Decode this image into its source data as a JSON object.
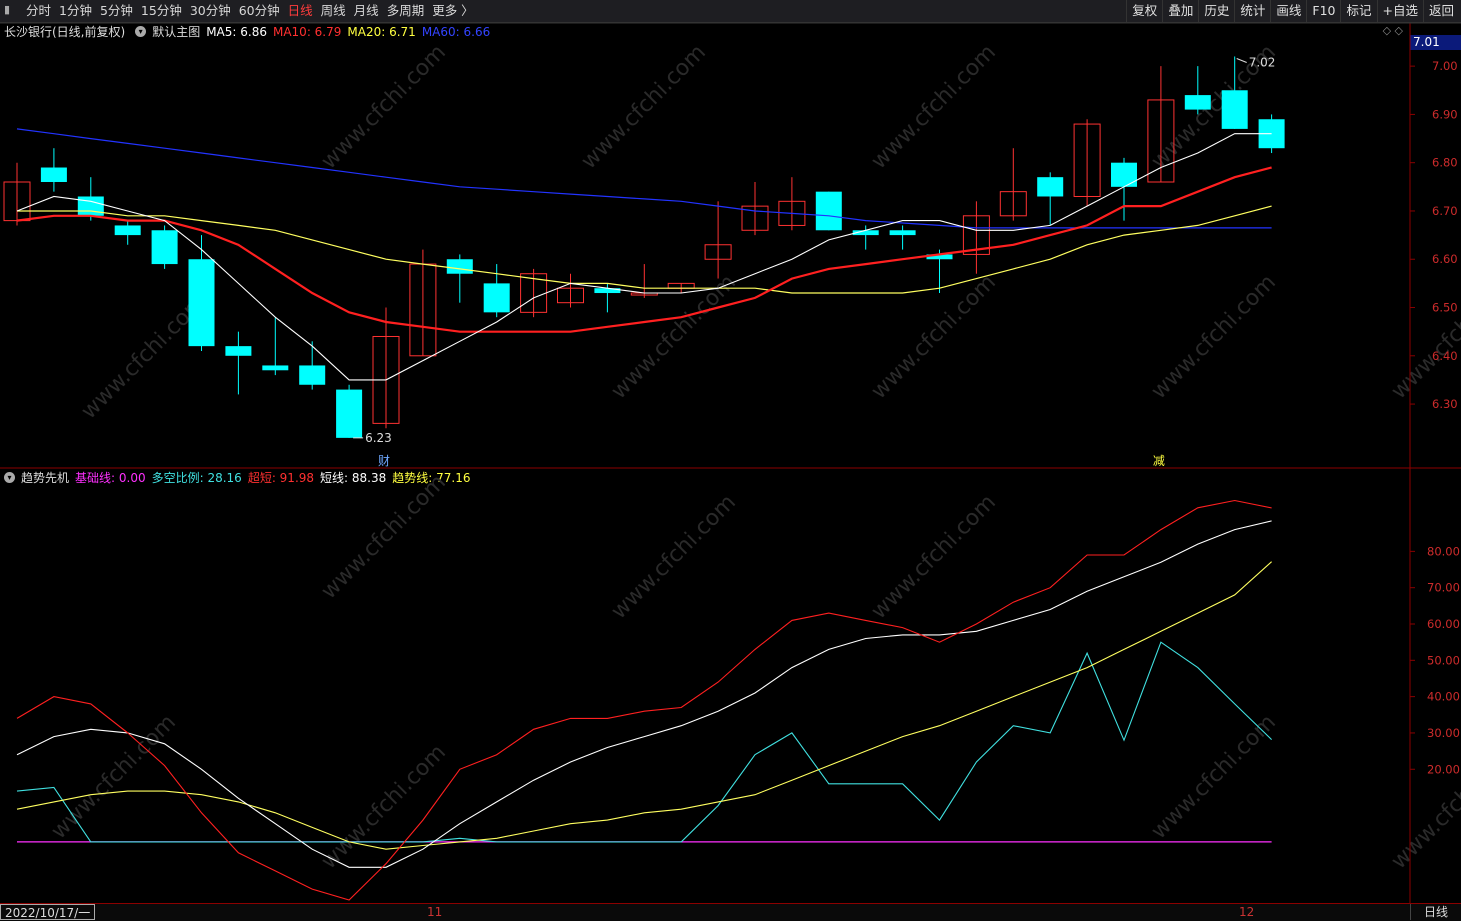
{
  "toolbar": {
    "periods": [
      "分时",
      "1分钟",
      "5分钟",
      "15分钟",
      "30分钟",
      "60分钟",
      "日线",
      "周线",
      "月线",
      "多周期",
      "更多 〉"
    ],
    "active_period": "日线",
    "tools": [
      "复权",
      "叠加",
      "历史",
      "统计",
      "画线",
      "F10",
      "标记",
      "+自选",
      "返回"
    ]
  },
  "main_panel": {
    "stock": "长沙银行(日线,前复权)",
    "chart_name": "默认主图",
    "ma5": "MA5: 6.86",
    "ma10": "MA10: 6.79",
    "ma20": "MA20: 6.71",
    "ma60": "MA60: 6.66",
    "current_price": "7.01",
    "high_label": "7.02",
    "low_label": "6.23",
    "marker_cai": "财",
    "marker_jian": "减"
  },
  "sub_panel": {
    "name": "趋势先机",
    "base": "基础线: 0.00",
    "ratio": "多空比例: 28.16",
    "chao": "超短: 91.98",
    "short": "短线: 88.38",
    "trend": "趋势线: 77.16"
  },
  "bottom": {
    "date": "2022/10/17/一",
    "month_11": "11",
    "month_12": "12",
    "period": "日线"
  },
  "watermark": "www.cfchi.com",
  "colors": {
    "up": "#ff3232",
    "down": "#00ffff",
    "ma5": "#ffffff",
    "ma10": "#ff2020",
    "ma20": "#ffff60",
    "ma60": "#2233ff"
  },
  "chart_data": {
    "type": "candlestick",
    "price_axis": {
      "ticks": [
        7.0,
        6.9,
        6.8,
        6.7,
        6.6,
        6.5,
        6.4,
        6.3
      ],
      "range": [
        6.18,
        7.05
      ]
    },
    "candles": [
      {
        "o": 6.68,
        "h": 6.8,
        "l": 6.67,
        "c": 6.76
      },
      {
        "o": 6.79,
        "h": 6.83,
        "l": 6.74,
        "c": 6.76
      },
      {
        "o": 6.73,
        "h": 6.77,
        "l": 6.68,
        "c": 6.69
      },
      {
        "o": 6.67,
        "h": 6.68,
        "l": 6.63,
        "c": 6.65
      },
      {
        "o": 6.66,
        "h": 6.67,
        "l": 6.58,
        "c": 6.59
      },
      {
        "o": 6.6,
        "h": 6.65,
        "l": 6.41,
        "c": 6.42
      },
      {
        "o": 6.42,
        "h": 6.45,
        "l": 6.32,
        "c": 6.4
      },
      {
        "o": 6.38,
        "h": 6.48,
        "l": 6.36,
        "c": 6.37
      },
      {
        "o": 6.38,
        "h": 6.43,
        "l": 6.33,
        "c": 6.34
      },
      {
        "o": 6.33,
        "h": 6.34,
        "l": 6.23,
        "c": 6.23
      },
      {
        "o": 6.26,
        "h": 6.5,
        "l": 6.25,
        "c": 6.44
      },
      {
        "o": 6.4,
        "h": 6.62,
        "l": 6.4,
        "c": 6.59
      },
      {
        "o": 6.6,
        "h": 6.61,
        "l": 6.51,
        "c": 6.57
      },
      {
        "o": 6.55,
        "h": 6.59,
        "l": 6.48,
        "c": 6.49
      },
      {
        "o": 6.49,
        "h": 6.58,
        "l": 6.48,
        "c": 6.57
      },
      {
        "o": 6.51,
        "h": 6.57,
        "l": 6.5,
        "c": 6.54
      },
      {
        "o": 6.54,
        "h": 6.55,
        "l": 6.49,
        "c": 6.53
      },
      {
        "o": 6.53,
        "h": 6.59,
        "l": 6.52,
        "c": 6.53
      },
      {
        "o": 6.54,
        "h": 6.55,
        "l": 6.53,
        "c": 6.55
      },
      {
        "o": 6.6,
        "h": 6.72,
        "l": 6.56,
        "c": 6.63
      },
      {
        "o": 6.66,
        "h": 6.76,
        "l": 6.65,
        "c": 6.71
      },
      {
        "o": 6.67,
        "h": 6.77,
        "l": 6.66,
        "c": 6.72
      },
      {
        "o": 6.74,
        "h": 6.74,
        "l": 6.66,
        "c": 6.66
      },
      {
        "o": 6.66,
        "h": 6.67,
        "l": 6.62,
        "c": 6.65
      },
      {
        "o": 6.66,
        "h": 6.67,
        "l": 6.62,
        "c": 6.65
      },
      {
        "o": 6.61,
        "h": 6.62,
        "l": 6.53,
        "c": 6.6
      },
      {
        "o": 6.61,
        "h": 6.72,
        "l": 6.57,
        "c": 6.69
      },
      {
        "o": 6.69,
        "h": 6.83,
        "l": 6.68,
        "c": 6.74
      },
      {
        "o": 6.77,
        "h": 6.78,
        "l": 6.67,
        "c": 6.73
      },
      {
        "o": 6.73,
        "h": 6.89,
        "l": 6.71,
        "c": 6.88
      },
      {
        "o": 6.8,
        "h": 6.81,
        "l": 6.68,
        "c": 6.75
      },
      {
        "o": 6.76,
        "h": 7.0,
        "l": 6.76,
        "c": 6.93
      },
      {
        "o": 6.94,
        "h": 7.0,
        "l": 6.9,
        "c": 6.91
      },
      {
        "o": 6.95,
        "h": 7.02,
        "l": 6.87,
        "c": 6.87
      },
      {
        "o": 6.89,
        "h": 6.9,
        "l": 6.82,
        "c": 6.83
      }
    ],
    "ma5": [
      6.7,
      6.73,
      6.72,
      6.7,
      6.68,
      6.62,
      6.55,
      6.48,
      6.42,
      6.35,
      6.35,
      6.39,
      6.43,
      6.47,
      6.52,
      6.55,
      6.54,
      6.53,
      6.53,
      6.54,
      6.57,
      6.6,
      6.64,
      6.66,
      6.68,
      6.68,
      6.66,
      6.66,
      6.67,
      6.71,
      6.75,
      6.79,
      6.82,
      6.86,
      6.86
    ],
    "ma10": [
      6.68,
      6.69,
      6.69,
      6.68,
      6.68,
      6.66,
      6.63,
      6.58,
      6.53,
      6.49,
      6.47,
      6.46,
      6.45,
      6.45,
      6.45,
      6.45,
      6.46,
      6.47,
      6.48,
      6.5,
      6.52,
      6.56,
      6.58,
      6.59,
      6.6,
      6.61,
      6.62,
      6.63,
      6.65,
      6.67,
      6.71,
      6.71,
      6.74,
      6.77,
      6.79
    ],
    "ma20": [
      6.7,
      6.7,
      6.7,
      6.69,
      6.69,
      6.68,
      6.67,
      6.66,
      6.64,
      6.62,
      6.6,
      6.59,
      6.58,
      6.57,
      6.56,
      6.55,
      6.55,
      6.54,
      6.54,
      6.54,
      6.54,
      6.53,
      6.53,
      6.53,
      6.53,
      6.54,
      6.56,
      6.58,
      6.6,
      6.63,
      6.65,
      6.66,
      6.67,
      6.69,
      6.71
    ],
    "ma60": [
      6.87,
      6.86,
      6.85,
      6.84,
      6.83,
      6.82,
      6.81,
      6.8,
      6.79,
      6.78,
      6.77,
      6.76,
      6.75,
      6.745,
      6.74,
      6.735,
      6.73,
      6.725,
      6.72,
      6.71,
      6.7,
      6.695,
      6.69,
      6.68,
      6.675,
      6.67,
      6.665,
      6.665,
      6.665,
      6.665,
      6.665,
      6.665,
      6.665,
      6.665,
      6.665
    ],
    "indicator": {
      "axis_ticks": [
        80,
        70,
        60,
        50,
        40,
        30,
        20
      ],
      "range": [
        -16,
        98
      ],
      "chao": [
        34,
        40,
        38,
        30,
        21,
        8,
        -3,
        -8,
        -13,
        -16,
        -6,
        6,
        20,
        24,
        31,
        34,
        34,
        36,
        37,
        44,
        53,
        61,
        63,
        61,
        59,
        55,
        60,
        66,
        70,
        79,
        79,
        86,
        92,
        94,
        91.98
      ],
      "short": [
        24,
        29,
        31,
        30,
        27,
        20,
        12,
        5,
        -2,
        -7,
        -7,
        -2,
        5,
        11,
        17,
        22,
        26,
        29,
        32,
        36,
        41,
        48,
        53,
        56,
        57,
        57,
        58,
        61,
        64,
        69,
        73,
        77,
        82,
        86,
        88.38
      ],
      "trend": [
        9,
        11,
        13,
        14,
        14,
        13,
        11,
        8,
        4,
        0,
        -2,
        -1,
        0,
        1,
        3,
        5,
        6,
        8,
        9,
        11,
        13,
        17,
        21,
        25,
        29,
        32,
        36,
        40,
        44,
        48,
        53,
        58,
        63,
        68,
        77.16
      ],
      "ratio": [
        14,
        15,
        0,
        0,
        0,
        0,
        0,
        0,
        0,
        0,
        0,
        0,
        1,
        0,
        0,
        0,
        0,
        0,
        0,
        10,
        24,
        30,
        16,
        16,
        16,
        6,
        22,
        32,
        30,
        52,
        28,
        55,
        48,
        38,
        28.16
      ],
      "base": [
        0,
        0,
        0,
        0,
        0,
        0,
        0,
        0,
        0,
        0,
        0,
        0,
        0,
        0,
        0,
        0,
        0,
        0,
        0,
        0,
        0,
        0,
        0,
        0,
        0,
        0,
        0,
        0,
        0,
        0,
        0,
        0,
        0,
        0,
        0
      ]
    }
  }
}
